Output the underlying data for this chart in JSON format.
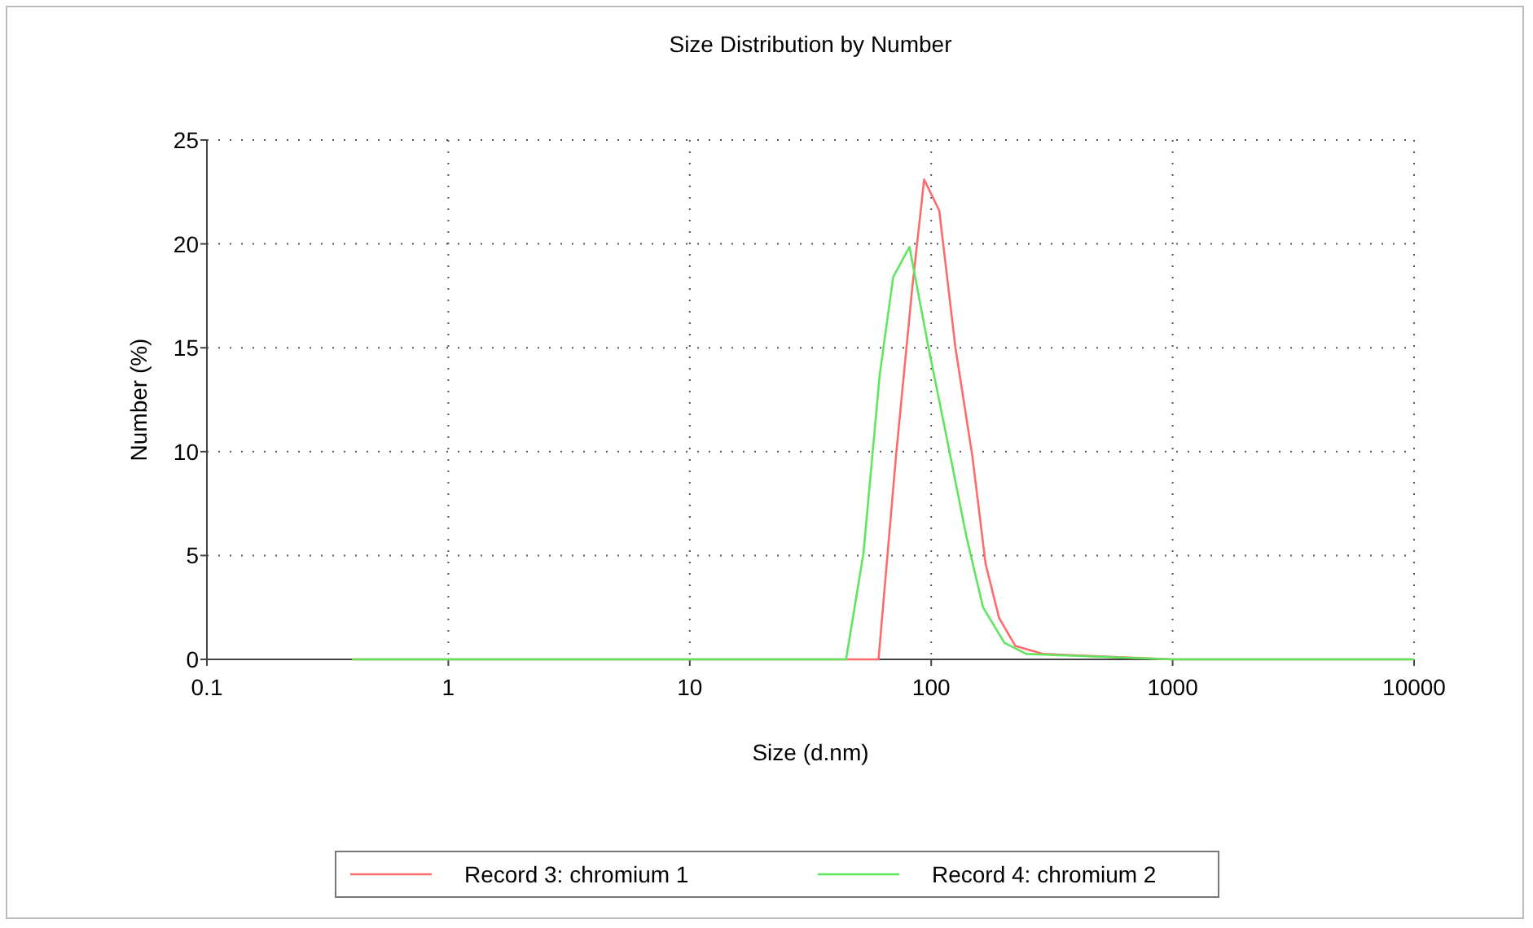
{
  "chart_data": {
    "type": "line",
    "title": "Size Distribution by Number",
    "xlabel": "Size (d.nm)",
    "ylabel": "Number (%)",
    "log": "x",
    "xlim": [
      0.1,
      10000
    ],
    "xticks": [
      0.1,
      1,
      10,
      100,
      1000,
      10000
    ],
    "ylim": [
      0,
      25
    ],
    "yticks": [
      0,
      5,
      10,
      15,
      20,
      25
    ],
    "grid": true,
    "legend": "bottom",
    "line_style": "solid",
    "marker": "none",
    "series": [
      {
        "name": "Record 3: chromium 1",
        "color": "#ff6b6b",
        "x": [
          0.4,
          10,
          50,
          60.5,
          71.5,
          83.5,
          93.5,
          108,
          126,
          148,
          168,
          191,
          223,
          290,
          414,
          1000,
          10000
        ],
        "values": [
          0,
          0,
          0,
          0,
          9.8,
          17.9,
          23.1,
          21.6,
          15.0,
          9.8,
          4.6,
          2.0,
          0.65,
          0.26,
          0.18,
          0,
          0
        ]
      },
      {
        "name": "Record 4: chromium 2",
        "color": "#5ee65e",
        "x": [
          0.4,
          10,
          44.4,
          52.4,
          61.2,
          69.6,
          81.3,
          97.5,
          114,
          140,
          164,
          201,
          248,
          1000,
          10000
        ],
        "values": [
          0,
          0,
          0,
          5.1,
          13.7,
          18.4,
          19.85,
          15.0,
          11.1,
          5.9,
          2.5,
          0.8,
          0.26,
          0,
          0
        ]
      }
    ]
  }
}
